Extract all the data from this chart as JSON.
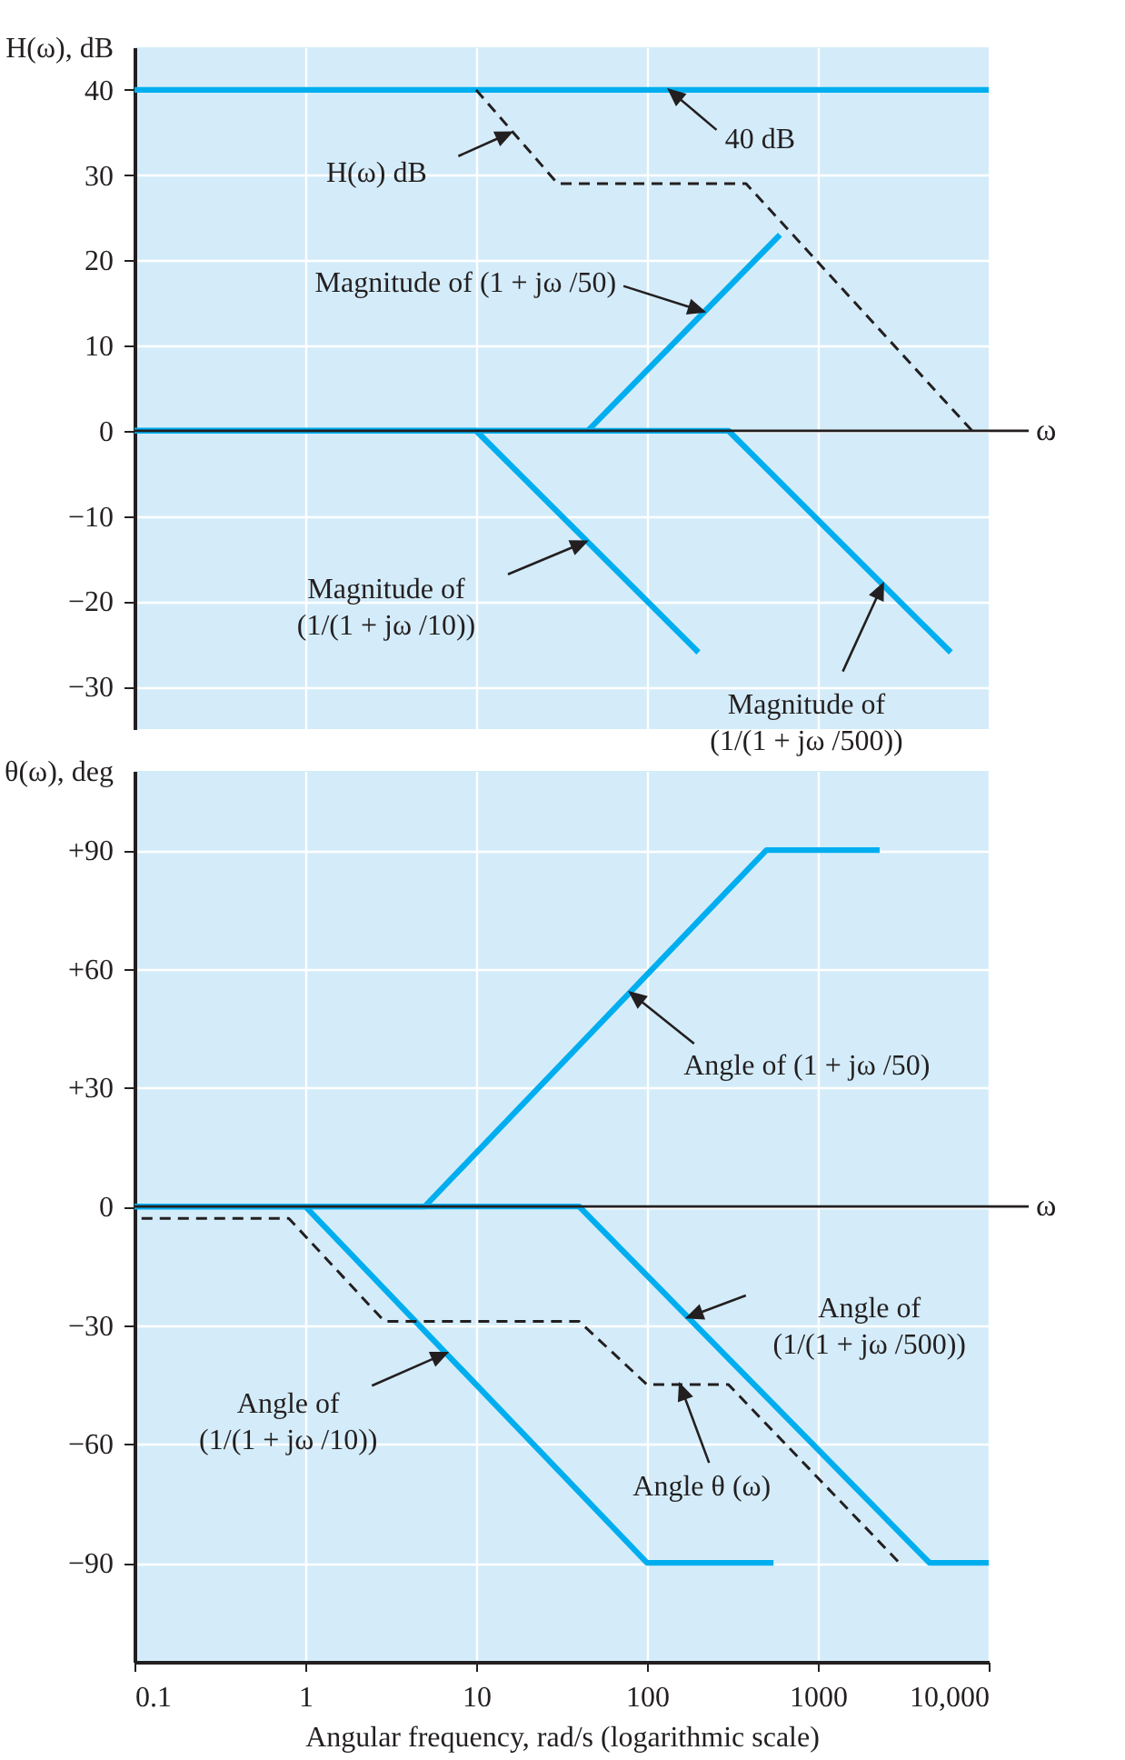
{
  "chart_data": [
    {
      "type": "line",
      "ylabel": "H(ω), dB",
      "xlim": [
        0.1,
        10000
      ],
      "ylim": [
        -35,
        45
      ],
      "log": "x",
      "grid": true,
      "marker": "none",
      "tick_labels": "y",
      "xticks": [
        1,
        10,
        100,
        1000
      ],
      "yticks": [
        {
          "value": -30,
          "label": "−30"
        },
        {
          "value": -20,
          "label": "−20"
        },
        {
          "value": -10,
          "label": "−10"
        },
        0,
        10,
        20,
        30,
        40
      ],
      "ref_lines": [
        {
          "axis": "y",
          "value": 0,
          "color": "#231f20"
        }
      ],
      "series": [
        {
          "color": "#00aeef",
          "line_style": "solid",
          "x": [
            0.1,
            10000
          ],
          "values": [
            40,
            40
          ]
        },
        {
          "color": "#00aeef",
          "line_style": "solid",
          "x": [
            0.1,
            45,
            600
          ],
          "values": [
            0,
            0,
            23
          ]
        },
        {
          "color": "#00aeef",
          "line_style": "solid",
          "x": [
            0.1,
            10,
            200
          ],
          "values": [
            0,
            0,
            -26
          ]
        },
        {
          "color": "#00aeef",
          "line_style": "solid",
          "x": [
            0.1,
            300,
            6000
          ],
          "values": [
            0,
            0,
            -26
          ]
        },
        {
          "color": "#231f20",
          "line_style": "dashed",
          "x": [
            10,
            30,
            380,
            8000
          ],
          "values": [
            40,
            29,
            29,
            0
          ]
        }
      ],
      "annotations": [
        {
          "text": "H(ω) dB",
          "x": 16,
          "y": 35
        },
        {
          "text": "40 dB",
          "x": 135,
          "y": 40
        },
        {
          "text": "Magnitude of (1 + jω /50)",
          "x": 214,
          "y": 14
        },
        {
          "text": "Magnitude of (1/(1 + jω /10))",
          "x": 44,
          "y": -13
        },
        {
          "text": "Magnitude of (1/(1 + jω /500))",
          "x": 2400,
          "y": -18
        },
        "ω"
      ]
    },
    {
      "type": "line",
      "ylabel": "θ(ω), deg",
      "xlabel": "Angular frequency, rad/s (logarithmic scale)",
      "xlim": [
        0.1,
        10000
      ],
      "ylim": [
        -115,
        110
      ],
      "log": "x",
      "grid": true,
      "marker": "none",
      "xticks": [
        0.1,
        1,
        10,
        100,
        1000,
        {
          "value": 10000,
          "label": "10,000"
        }
      ],
      "yticks": [
        {
          "value": -90,
          "label": "−90"
        },
        {
          "value": -60,
          "label": "−60"
        },
        {
          "value": -30,
          "label": "−30"
        },
        0,
        {
          "value": 30,
          "label": "+30"
        },
        {
          "value": 60,
          "label": "+60"
        },
        {
          "value": 90,
          "label": "+90"
        }
      ],
      "ref_lines": [
        {
          "axis": "y",
          "value": 0,
          "color": "#231f20"
        }
      ],
      "series": [
        {
          "color": "#00aeef",
          "line_style": "solid",
          "x": [
            0.1,
            5,
            500,
            2300
          ],
          "values": [
            0,
            0,
            90,
            90
          ]
        },
        {
          "color": "#00aeef",
          "line_style": "solid",
          "x": [
            0.1,
            1,
            100,
            550
          ],
          "values": [
            0,
            0,
            -90,
            -90
          ]
        },
        {
          "color": "#00aeef",
          "line_style": "solid",
          "x": [
            0.1,
            40,
            4500,
            10000
          ],
          "values": [
            0,
            0,
            -90,
            -90
          ]
        },
        {
          "color": "#231f20",
          "line_style": "dashed",
          "x": [
            0.11,
            0.8,
            2.9,
            40,
            100,
            300,
            3000
          ],
          "values": [
            -3,
            -3,
            -29,
            -29,
            -45,
            -45,
            -90
          ]
        }
      ],
      "annotations": [
        {
          "text": "Angle of (1 + jω /50)",
          "x": 80,
          "y": 54
        },
        {
          "text": "Angle of (1/(1 + jω /500))",
          "x": 173,
          "y": -28
        },
        {
          "text": "Angle of (1/(1 + jω /10))",
          "x": 6.7,
          "y": -37
        },
        {
          "text": "Angle θ (ω)",
          "x": 156,
          "y": -45
        },
        "ω"
      ]
    }
  ]
}
